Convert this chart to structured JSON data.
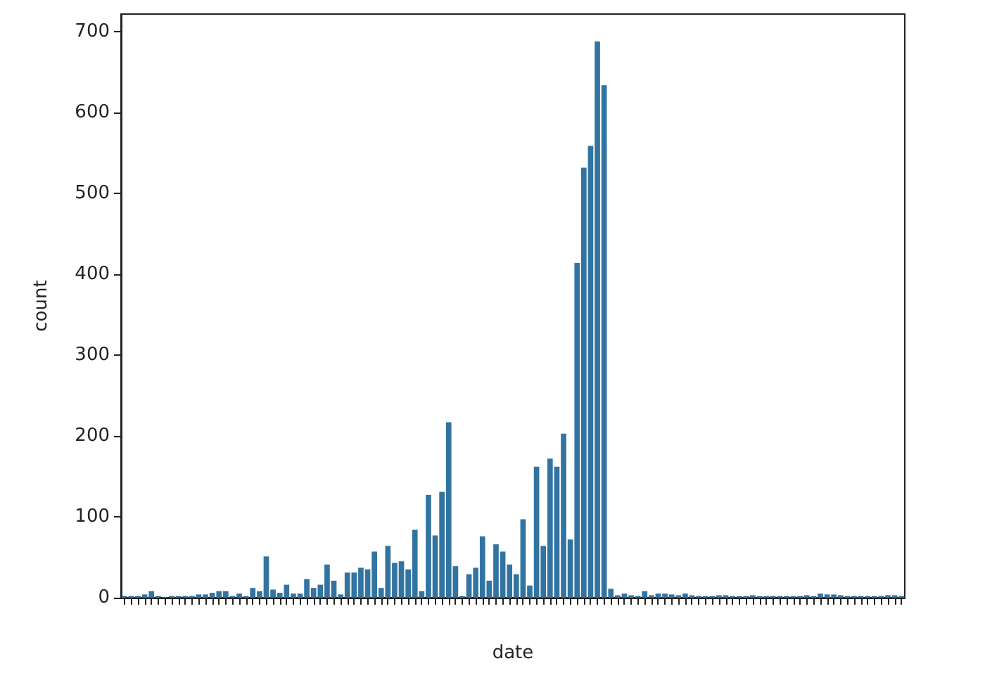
{
  "chart_data": {
    "type": "bar",
    "xlabel": "date",
    "ylabel": "count",
    "categories": [
      null,
      null,
      null,
      null,
      null,
      null,
      null,
      null,
      null,
      null,
      null,
      null,
      null,
      null,
      null,
      null,
      null,
      null,
      null,
      null,
      null,
      null,
      null,
      null,
      null,
      null,
      null,
      null,
      null,
      null,
      null,
      null,
      null,
      null,
      null,
      null,
      null,
      null,
      null,
      null,
      null,
      null,
      null,
      null,
      null,
      null,
      null,
      null,
      null,
      null,
      null,
      null,
      null,
      null,
      null,
      null,
      null,
      null,
      null,
      null,
      null,
      null,
      null,
      null,
      null,
      null,
      null,
      null,
      null,
      null,
      null,
      null,
      null,
      null,
      null,
      null,
      null,
      null,
      null,
      null,
      null,
      null,
      null,
      null,
      null,
      null,
      null,
      null,
      null,
      null,
      null,
      null,
      null,
      null,
      null,
      null,
      null,
      null,
      null,
      null,
      null,
      null,
      null,
      null,
      null,
      null,
      null,
      null,
      null,
      null,
      null,
      null,
      null,
      null,
      null,
      null
    ],
    "values": [
      2,
      2,
      2,
      4,
      8,
      2,
      1,
      2,
      2,
      2,
      2,
      4,
      4,
      6,
      8,
      8,
      2,
      5,
      2,
      12,
      8,
      51,
      10,
      6,
      16,
      5,
      5,
      23,
      12,
      16,
      41,
      21,
      4,
      31,
      31,
      37,
      35,
      57,
      12,
      64,
      43,
      45,
      35,
      84,
      8,
      127,
      77,
      131,
      217,
      39,
      2,
      29,
      37,
      76,
      21,
      66,
      57,
      41,
      29,
      97,
      15,
      162,
      64,
      172,
      162,
      203,
      72,
      414,
      532,
      559,
      688,
      634,
      11,
      3,
      5,
      3,
      2,
      8,
      3,
      5,
      5,
      4,
      3,
      5,
      3,
      2,
      2,
      2,
      3,
      3,
      2,
      2,
      2,
      3,
      2,
      2,
      2,
      2,
      2,
      2,
      2,
      3,
      2,
      5,
      4,
      4,
      3,
      2,
      2,
      2,
      2,
      2,
      2,
      3,
      3,
      2
    ],
    "color": "#3274a1",
    "ylim": [
      0,
      722
    ],
    "yticks": [
      0,
      100,
      200,
      300,
      400,
      500,
      600,
      700
    ],
    "grid": false
  }
}
